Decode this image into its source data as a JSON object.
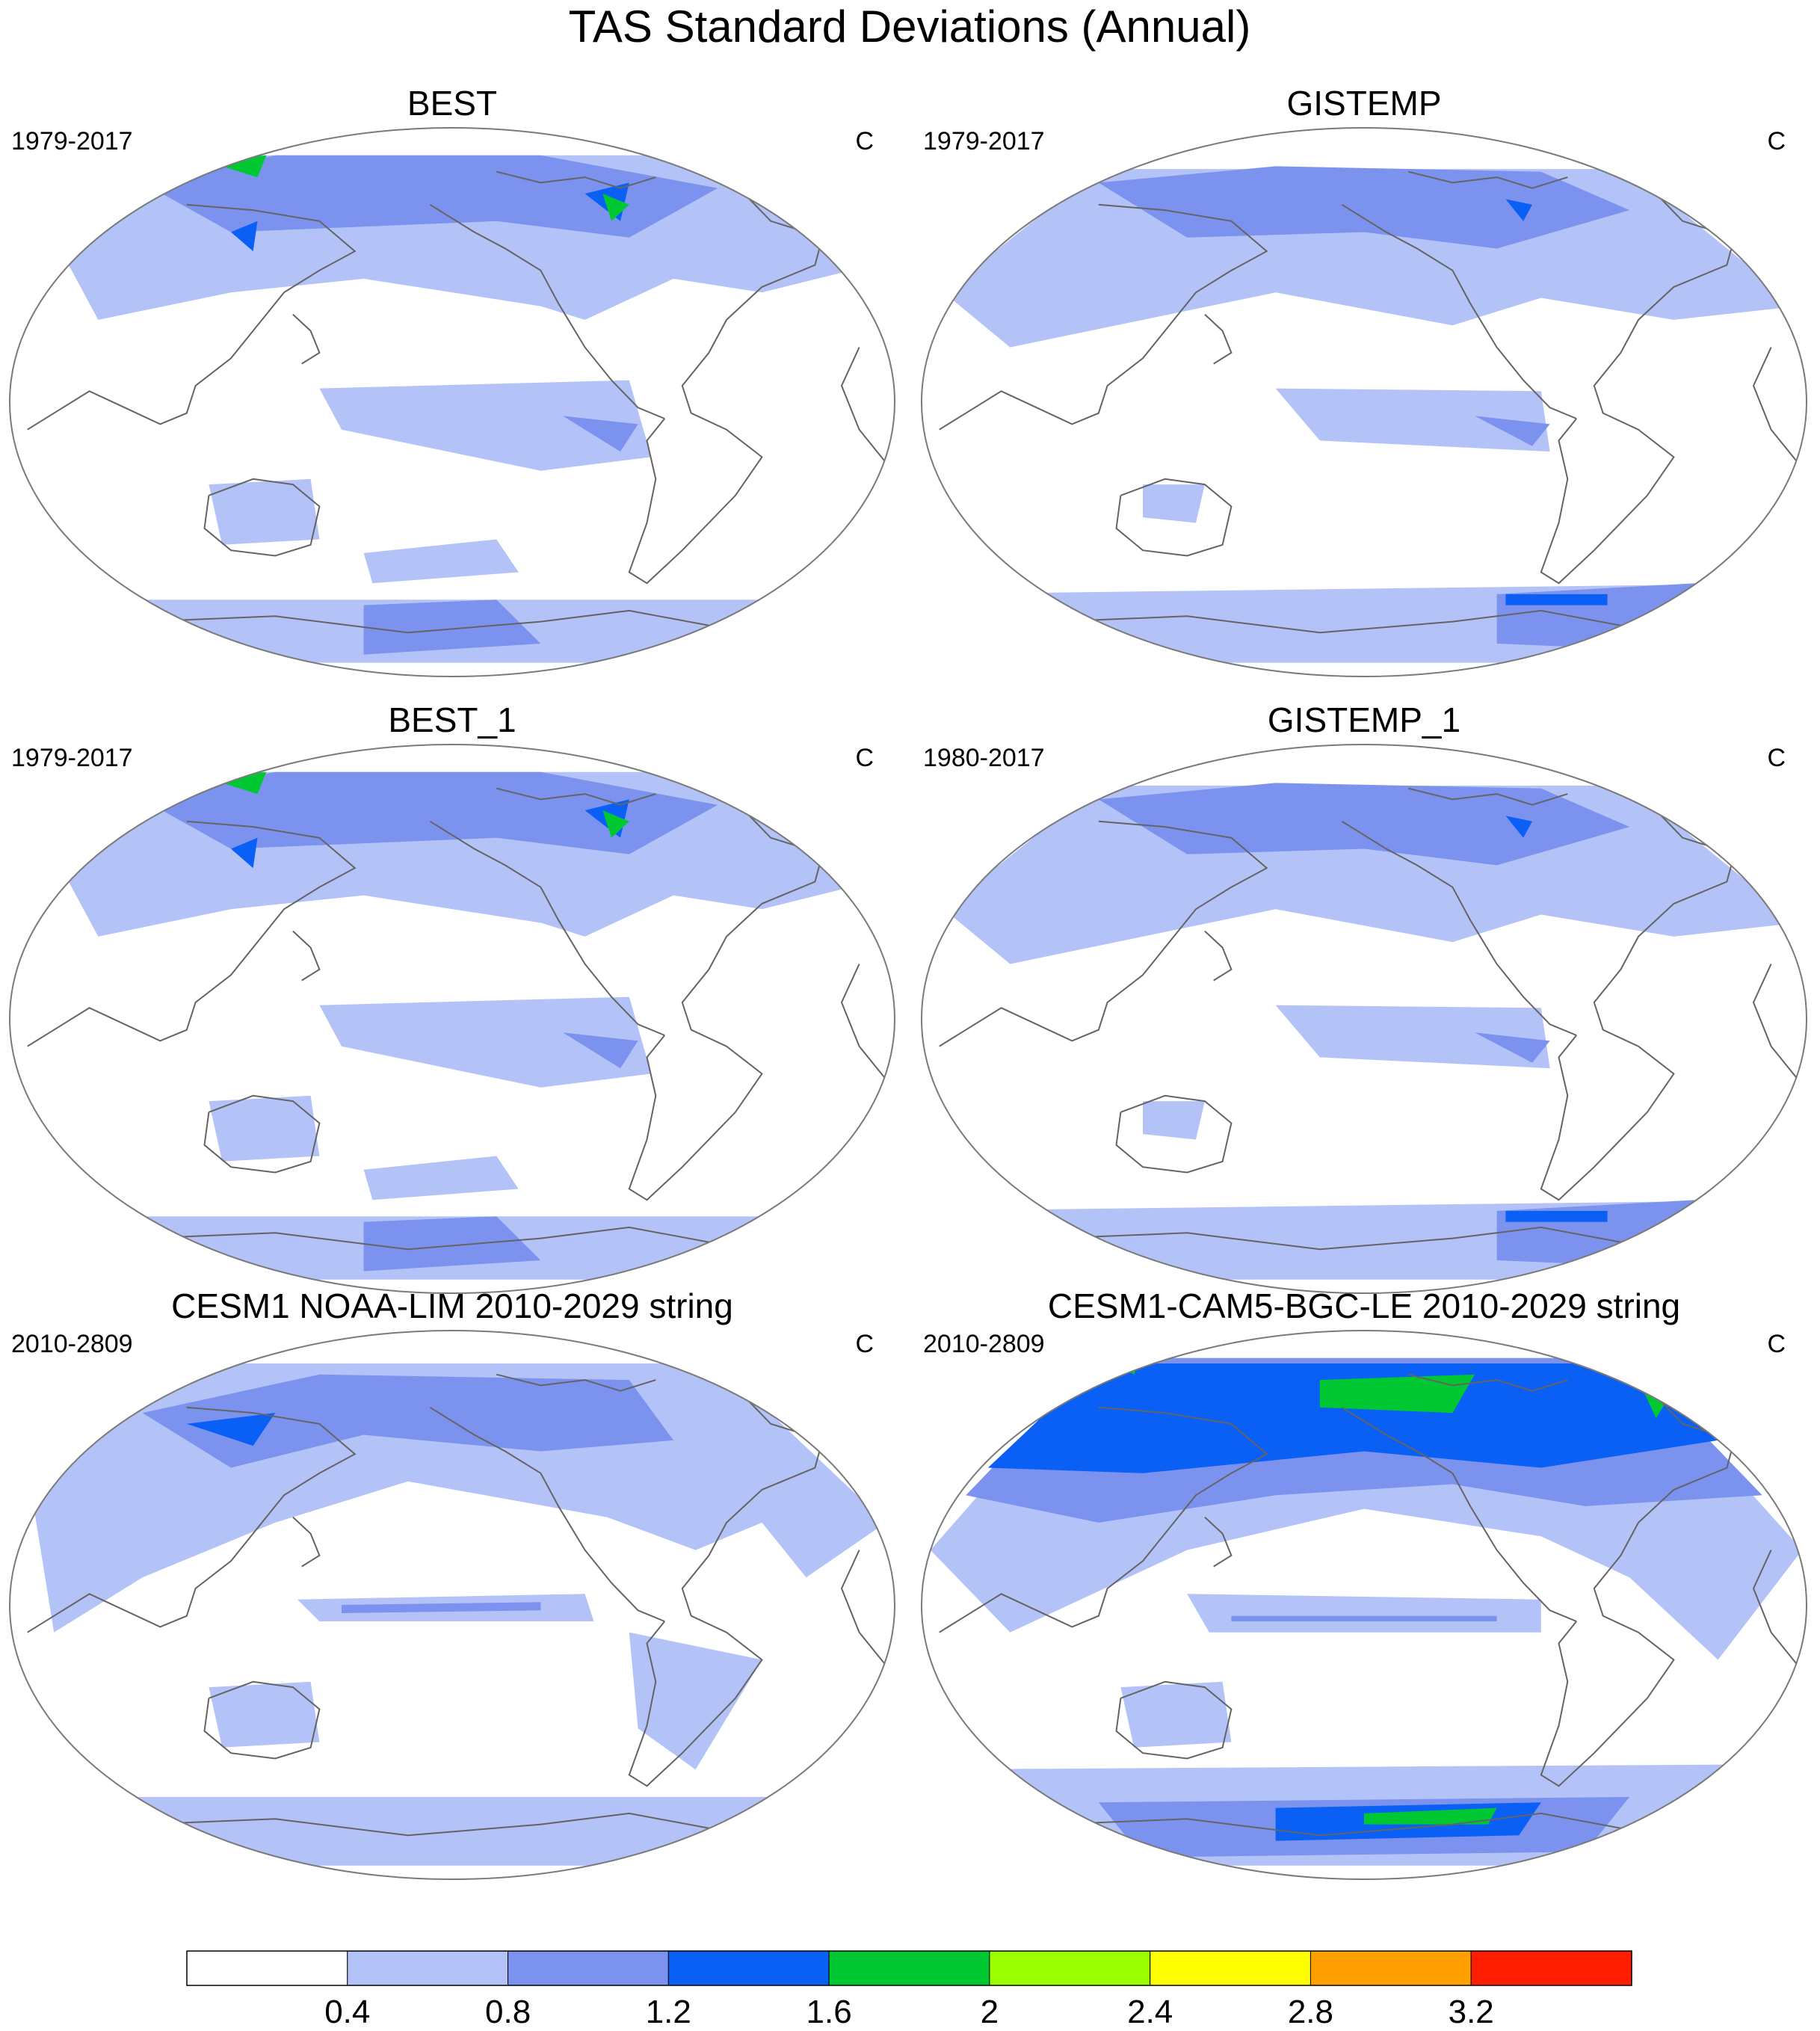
{
  "figure": {
    "title": "TAS Standard Deviations (Annual)"
  },
  "panels": [
    {
      "title": "BEST",
      "left": "1979-2017",
      "right": "C",
      "variant": "obs"
    },
    {
      "title": "GISTEMP",
      "left": "1979-2017",
      "right": "C",
      "variant": "giss"
    },
    {
      "title": "BEST_1",
      "left": "1979-2017",
      "right": "C",
      "variant": "obs"
    },
    {
      "title": "GISTEMP_1",
      "left": "1980-2017",
      "right": "C",
      "variant": "giss"
    },
    {
      "title": "CESM1 NOAA-LIM 2010-2029 string",
      "left": "2010-2809",
      "right": "C",
      "variant": "model"
    },
    {
      "title": "CESM1-CAM5-BGC-LE 2010-2029 string",
      "left": "2010-2809",
      "right": "C",
      "variant": "model_high"
    }
  ],
  "colorbar": {
    "colors": [
      "#ffffff",
      "#b4c3f7",
      "#7b92ee",
      "#0a5ff5",
      "#00c832",
      "#9bff00",
      "#ffff00",
      "#ffa000",
      "#ff1e00"
    ],
    "labels": [
      "0.4",
      "0.8",
      "1.2",
      "1.6",
      "2",
      "2.4",
      "2.8",
      "3.2"
    ]
  },
  "map_style": {
    "coastline": "#646464",
    "outline": "#7a7a7a"
  }
}
